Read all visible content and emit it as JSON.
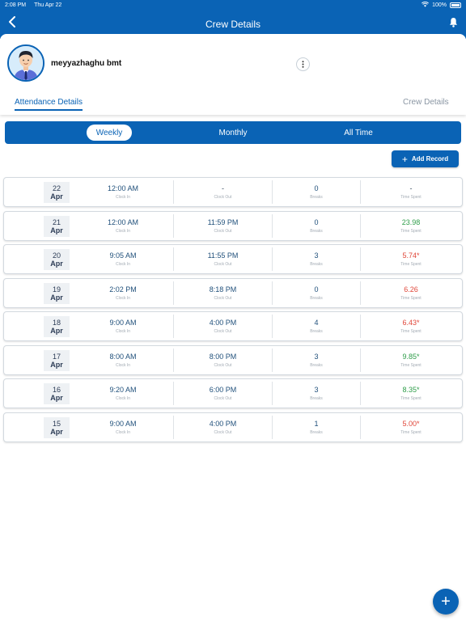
{
  "status_bar": {
    "time": "2:08 PM",
    "date": "Thu Apr 22",
    "battery": "100%"
  },
  "header": {
    "title": "Crew Details"
  },
  "profile": {
    "name": "meyyazhaghu bmt"
  },
  "tabs": [
    {
      "label": "Attendance Details"
    },
    {
      "label": "Crew Details"
    }
  ],
  "periods": [
    {
      "label": "Weekly"
    },
    {
      "label": "Monthly"
    },
    {
      "label": "All Time"
    }
  ],
  "add_record": {
    "label": "Add Record"
  },
  "column_labels": {
    "clock_in": "Clock In",
    "clock_out": "Clock Out",
    "breaks": "Breaks",
    "time_spent": "Time Spent"
  },
  "records": [
    {
      "day": "22",
      "month": "Apr",
      "clock_in": "12:00 AM",
      "clock_out": "-",
      "breaks": "0",
      "time_spent": "-",
      "status": "neutral"
    },
    {
      "day": "21",
      "month": "Apr",
      "clock_in": "12:00 AM",
      "clock_out": "11:59 PM",
      "breaks": "0",
      "time_spent": "23.98",
      "status": "good"
    },
    {
      "day": "20",
      "month": "Apr",
      "clock_in": "9:05 AM",
      "clock_out": "11:55 PM",
      "breaks": "3",
      "time_spent": "5.74*",
      "status": "bad"
    },
    {
      "day": "19",
      "month": "Apr",
      "clock_in": "2:02 PM",
      "clock_out": "8:18 PM",
      "breaks": "0",
      "time_spent": "6.26",
      "status": "bad"
    },
    {
      "day": "18",
      "month": "Apr",
      "clock_in": "9:00 AM",
      "clock_out": "4:00 PM",
      "breaks": "4",
      "time_spent": "6.43*",
      "status": "bad"
    },
    {
      "day": "17",
      "month": "Apr",
      "clock_in": "8:00 AM",
      "clock_out": "8:00 PM",
      "breaks": "3",
      "time_spent": "9.85*",
      "status": "good"
    },
    {
      "day": "16",
      "month": "Apr",
      "clock_in": "9:20 AM",
      "clock_out": "6:00 PM",
      "breaks": "3",
      "time_spent": "8.35*",
      "status": "good"
    },
    {
      "day": "15",
      "month": "Apr",
      "clock_in": "9:00 AM",
      "clock_out": "4:00 PM",
      "breaks": "1",
      "time_spent": "5.00*",
      "status": "bad"
    }
  ],
  "icons": {
    "back": "chevron-left-icon",
    "bell": "bell-icon",
    "more": "more-vertical-icon",
    "add": "plus-icon",
    "wifi": "wifi-icon",
    "battery": "battery-icon"
  },
  "colors": {
    "primary": "#0a63b5",
    "good": "#2f9d4a",
    "bad": "#e0473a"
  }
}
